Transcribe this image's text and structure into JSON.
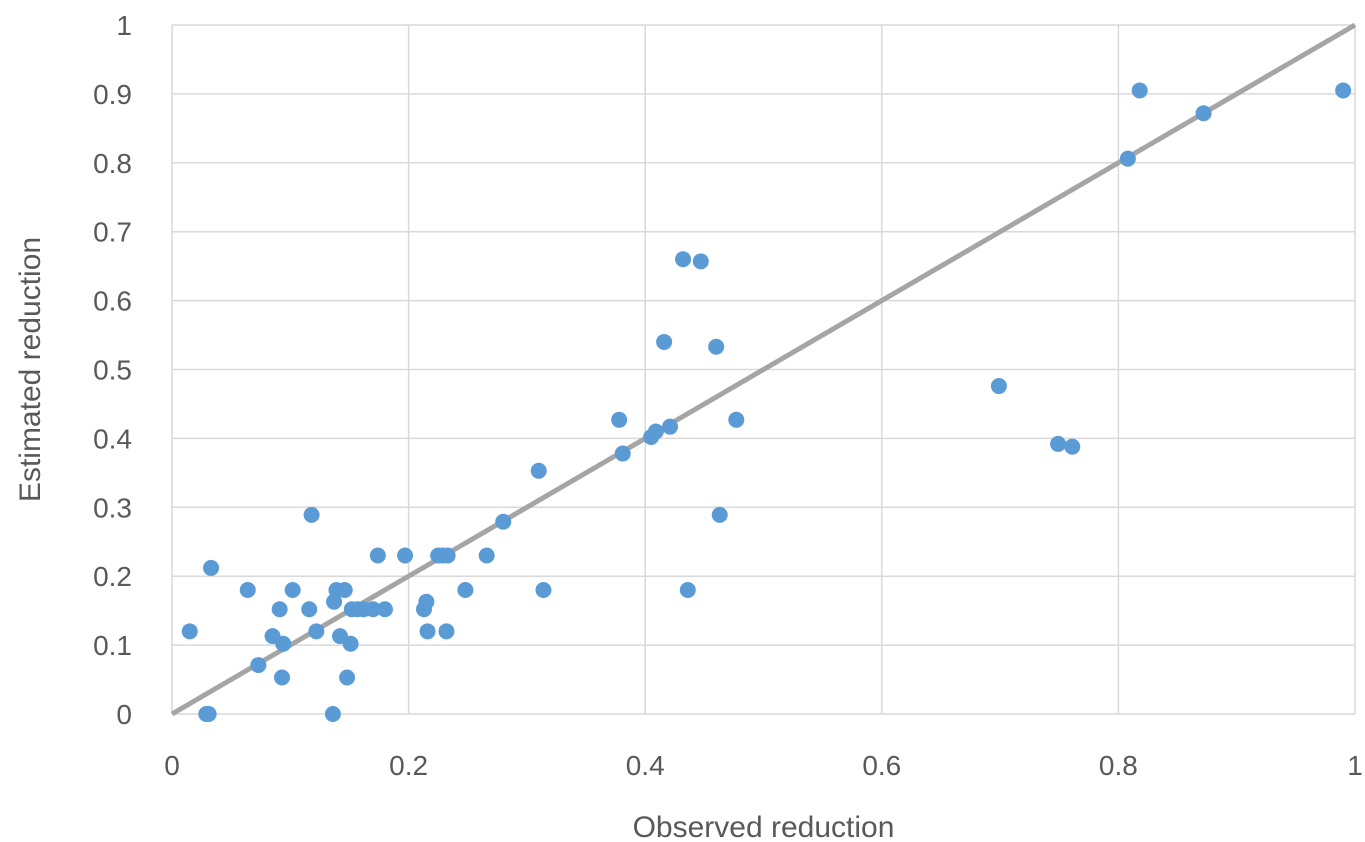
{
  "chart_data": {
    "type": "scatter",
    "title": "",
    "xlabel": "Observed reduction",
    "ylabel": "Estimated reduction",
    "xlim": [
      0,
      1
    ],
    "ylim": [
      0,
      1
    ],
    "grid": true,
    "legend": "none",
    "x_ticks": [
      "0",
      "0.2",
      "0.4",
      "0.6",
      "0.8",
      "1"
    ],
    "y_ticks": [
      "0",
      "0.1",
      "0.2",
      "0.3",
      "0.4",
      "0.5",
      "0.6",
      "0.7",
      "0.8",
      "0.9",
      "1"
    ],
    "colors": {
      "points": "#5b9bd5",
      "reference_line": "#a5a5a5",
      "grid": "#d9d9d9",
      "text": "#595959"
    },
    "reference_line": {
      "x": [
        0,
        1
      ],
      "y": [
        0,
        1
      ]
    },
    "series": [
      {
        "points": [
          [
            0.015,
            0.12
          ],
          [
            0.029,
            0.0
          ],
          [
            0.031,
            0.0
          ],
          [
            0.033,
            0.212
          ],
          [
            0.064,
            0.18
          ],
          [
            0.073,
            0.071
          ],
          [
            0.085,
            0.113
          ],
          [
            0.091,
            0.152
          ],
          [
            0.093,
            0.053
          ],
          [
            0.094,
            0.102
          ],
          [
            0.102,
            0.18
          ],
          [
            0.116,
            0.152
          ],
          [
            0.118,
            0.289
          ],
          [
            0.122,
            0.12
          ],
          [
            0.136,
            0.0
          ],
          [
            0.137,
            0.163
          ],
          [
            0.139,
            0.18
          ],
          [
            0.142,
            0.113
          ],
          [
            0.146,
            0.18
          ],
          [
            0.148,
            0.053
          ],
          [
            0.151,
            0.102
          ],
          [
            0.152,
            0.152
          ],
          [
            0.157,
            0.152
          ],
          [
            0.162,
            0.152
          ],
          [
            0.17,
            0.152
          ],
          [
            0.174,
            0.23
          ],
          [
            0.18,
            0.152
          ],
          [
            0.197,
            0.23
          ],
          [
            0.213,
            0.152
          ],
          [
            0.215,
            0.163
          ],
          [
            0.216,
            0.12
          ],
          [
            0.225,
            0.23
          ],
          [
            0.229,
            0.23
          ],
          [
            0.232,
            0.12
          ],
          [
            0.233,
            0.23
          ],
          [
            0.248,
            0.18
          ],
          [
            0.266,
            0.23
          ],
          [
            0.28,
            0.279
          ],
          [
            0.31,
            0.353
          ],
          [
            0.314,
            0.18
          ],
          [
            0.378,
            0.427
          ],
          [
            0.381,
            0.378
          ],
          [
            0.405,
            0.402
          ],
          [
            0.409,
            0.41
          ],
          [
            0.416,
            0.54
          ],
          [
            0.421,
            0.417
          ],
          [
            0.432,
            0.66
          ],
          [
            0.436,
            0.18
          ],
          [
            0.447,
            0.657
          ],
          [
            0.46,
            0.533
          ],
          [
            0.463,
            0.289
          ],
          [
            0.477,
            0.427
          ],
          [
            0.699,
            0.476
          ],
          [
            0.749,
            0.392
          ],
          [
            0.761,
            0.388
          ],
          [
            0.808,
            0.806
          ],
          [
            0.818,
            0.905
          ],
          [
            0.872,
            0.872
          ],
          [
            0.99,
            0.905
          ]
        ]
      }
    ]
  }
}
